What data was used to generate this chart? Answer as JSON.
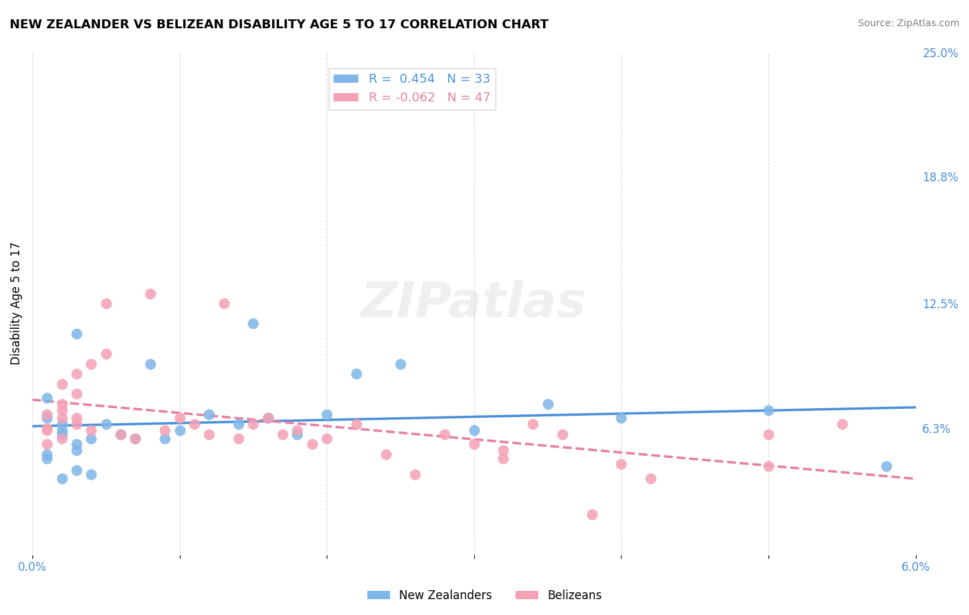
{
  "title": "NEW ZEALANDER VS BELIZEAN DISABILITY AGE 5 TO 17 CORRELATION CHART",
  "source": "Source: ZipAtlas.com",
  "ylabel": "Disability Age 5 to 17",
  "xlim": [
    0.0,
    0.06
  ],
  "ylim": [
    0.0,
    0.25
  ],
  "xtick_pos": [
    0.0,
    0.01,
    0.02,
    0.03,
    0.04,
    0.05,
    0.06
  ],
  "xticklabels": [
    "0.0%",
    "",
    "",
    "",
    "",
    "",
    "6.0%"
  ],
  "ytick_positions": [
    0.0,
    0.063,
    0.125,
    0.188,
    0.25
  ],
  "yticklabels_right": [
    "",
    "6.3%",
    "12.5%",
    "18.8%",
    "25.0%"
  ],
  "blue_color": "#7EB6E8",
  "pink_color": "#F4A0B5",
  "blue_line_color": "#4A90D9",
  "pink_line_color": "#E87FA0",
  "legend_r_blue": "R =  0.454",
  "legend_n_blue": "N = 33",
  "legend_r_pink": "R = -0.062",
  "legend_n_pink": "N = 47",
  "watermark": "ZIPatlas",
  "legend_label_blue": "New Zealanders",
  "legend_label_pink": "Belizeans",
  "blue_scatter_x": [
    0.002,
    0.003,
    0.001,
    0.004,
    0.002,
    0.001,
    0.003,
    0.005,
    0.001,
    0.002,
    0.003,
    0.004,
    0.002,
    0.001,
    0.003,
    0.006,
    0.007,
    0.008,
    0.009,
    0.01,
    0.012,
    0.014,
    0.015,
    0.016,
    0.018,
    0.02,
    0.022,
    0.025,
    0.03,
    0.035,
    0.04,
    0.05,
    0.058
  ],
  "blue_scatter_y": [
    0.06,
    0.055,
    0.05,
    0.058,
    0.062,
    0.048,
    0.052,
    0.065,
    0.068,
    0.065,
    0.042,
    0.04,
    0.038,
    0.078,
    0.11,
    0.06,
    0.058,
    0.095,
    0.058,
    0.062,
    0.07,
    0.065,
    0.115,
    0.068,
    0.06,
    0.07,
    0.09,
    0.095,
    0.062,
    0.075,
    0.068,
    0.072,
    0.044
  ],
  "pink_scatter_x": [
    0.001,
    0.002,
    0.001,
    0.002,
    0.003,
    0.002,
    0.001,
    0.002,
    0.003,
    0.001,
    0.002,
    0.003,
    0.004,
    0.005,
    0.004,
    0.003,
    0.005,
    0.006,
    0.007,
    0.008,
    0.009,
    0.01,
    0.011,
    0.012,
    0.013,
    0.014,
    0.015,
    0.016,
    0.017,
    0.018,
    0.019,
    0.02,
    0.022,
    0.024,
    0.026,
    0.028,
    0.03,
    0.032,
    0.034,
    0.036,
    0.038,
    0.04,
    0.032,
    0.05,
    0.055,
    0.042,
    0.05
  ],
  "pink_scatter_y": [
    0.063,
    0.068,
    0.062,
    0.072,
    0.065,
    0.058,
    0.07,
    0.075,
    0.08,
    0.055,
    0.085,
    0.09,
    0.095,
    0.1,
    0.062,
    0.068,
    0.125,
    0.06,
    0.058,
    0.13,
    0.062,
    0.068,
    0.065,
    0.06,
    0.125,
    0.058,
    0.065,
    0.068,
    0.06,
    0.062,
    0.055,
    0.058,
    0.065,
    0.05,
    0.04,
    0.06,
    0.055,
    0.048,
    0.065,
    0.06,
    0.02,
    0.045,
    0.052,
    0.06,
    0.065,
    0.038,
    0.044
  ]
}
